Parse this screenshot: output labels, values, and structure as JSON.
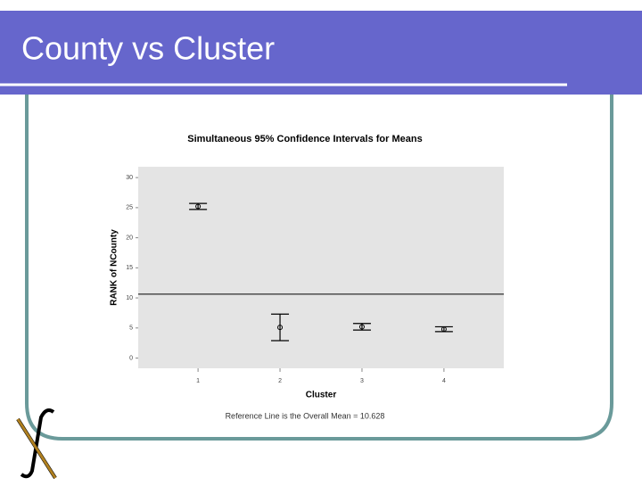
{
  "header": {
    "title": "County vs Cluster"
  },
  "chart_data": {
    "type": "errorbar",
    "title": "Simultaneous 95% Confidence Intervals for Means",
    "x_label": "Cluster",
    "y_label": "RANK of NCounty",
    "x": [
      1,
      2,
      3,
      4
    ],
    "values": [
      25.2,
      5.1,
      5.2,
      4.8
    ],
    "errors": [
      0.5,
      2.2,
      0.55,
      0.4
    ],
    "color": "#000000",
    "xlim": [
      0.27,
      4.73
    ],
    "xticks": [
      1,
      2,
      3,
      4
    ],
    "ylim": [
      -1.7,
      31.8
    ],
    "yticks": [
      0,
      5,
      10,
      15,
      20,
      25,
      30
    ],
    "reference_line": 10.628,
    "footnote": "Reference Line is the Overall Mean = 10.628"
  }
}
